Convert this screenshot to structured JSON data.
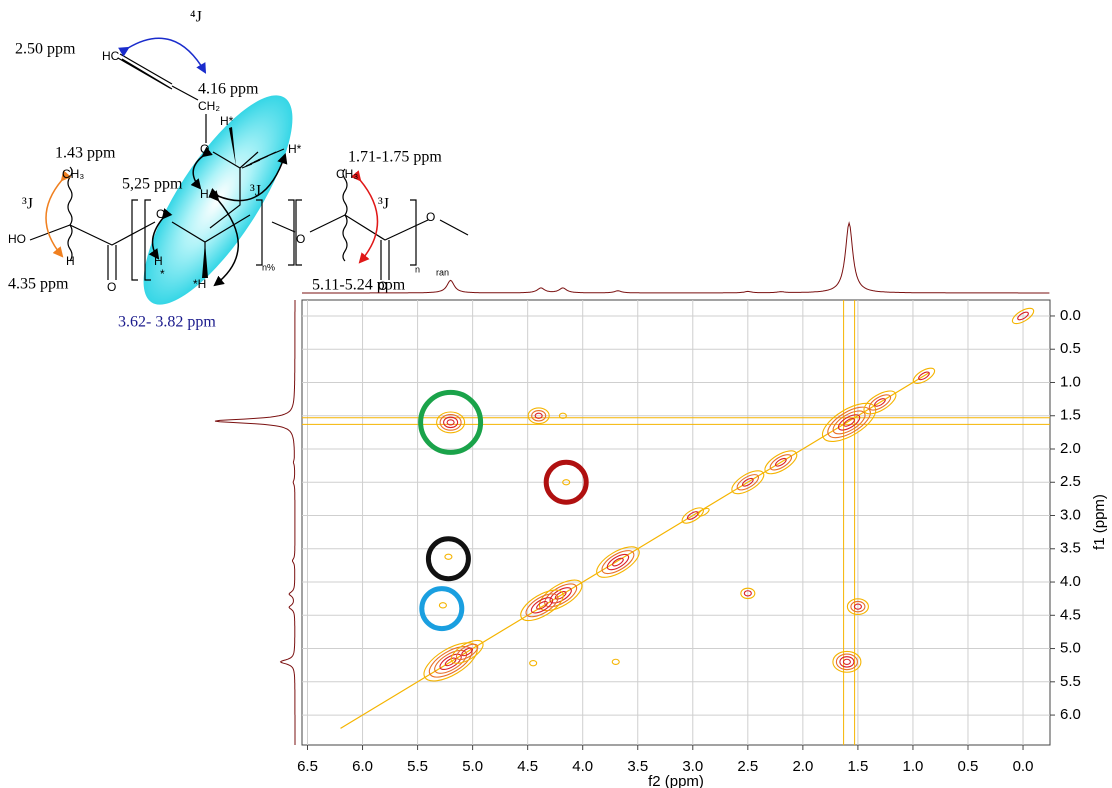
{
  "chart_data": {
    "type": "contour",
    "x_label": "f2 (ppm)",
    "y_label": "f1 (ppm)",
    "xlim": [
      6.55,
      -0.245
    ],
    "ylim": [
      -0.24,
      6.45
    ],
    "xticks": [
      6.5,
      {
        "value": 6,
        "label": "6.0"
      },
      5.5,
      {
        "value": 5,
        "label": "5.0"
      },
      4.5,
      {
        "value": 4,
        "label": "4.0"
      },
      3.5,
      {
        "value": 3,
        "label": "3.0"
      },
      2.5,
      {
        "value": 2,
        "label": "2.0"
      },
      1.5,
      {
        "value": 1,
        "label": "1.0"
      },
      0.5,
      {
        "value": 0,
        "label": "0.0"
      }
    ],
    "yticks": [
      {
        "value": 0,
        "label": "0.0"
      },
      0.5,
      {
        "value": 1,
        "label": "1.0"
      },
      1.5,
      {
        "value": 2,
        "label": "2.0"
      },
      2.5,
      {
        "value": 3,
        "label": "3.0"
      },
      3.5,
      {
        "value": 4,
        "label": "4.0"
      },
      4.5,
      {
        "value": 5,
        "label": "5.0"
      },
      5.5,
      {
        "value": 6,
        "label": "6.0"
      }
    ],
    "grid": true,
    "colors": [
      "#f5b400",
      "#e8702a",
      "#d9202a"
    ],
    "x": [
      5.2,
      4.4,
      4.18,
      1.58,
      1.3,
      0.9,
      2.2,
      2.5,
      3.0,
      2.9,
      3.68,
      4.2,
      4.37,
      5.2,
      5.05,
      4.15,
      2.5,
      1.5,
      1.6,
      5.22,
      5.27,
      0.0,
      3.7,
      4.45
    ],
    "values": [
      1.6,
      1.5,
      1.5,
      1.6,
      1.3,
      0.9,
      2.2,
      2.5,
      3.0,
      2.95,
      3.7,
      4.2,
      4.35,
      5.2,
      5.05,
      2.5,
      4.17,
      4.37,
      5.2,
      3.62,
      4.35,
      0.0,
      5.2,
      5.22
    ],
    "intensity": [
      4,
      3,
      1,
      5,
      3,
      2,
      3,
      3,
      2,
      1,
      4,
      4,
      4,
      5,
      3,
      1,
      2,
      3,
      4,
      1,
      1,
      2,
      1,
      1
    ],
    "diagonal": [
      6.2,
      0.85
    ],
    "streak": 1.58,
    "projection_peaks": [
      1.58,
      5.2,
      4.38,
      4.18,
      3.68,
      2.5,
      2.2
    ],
    "projection_heights": [
      1,
      0.18,
      0.07,
      0.07,
      0.03,
      0.02,
      0.015
    ],
    "highlights": [
      {
        "x": 5.2,
        "y": 1.6,
        "color": "#1aa34a"
      },
      {
        "x": 4.15,
        "y": 2.5,
        "color": "#b01010"
      },
      {
        "x": 5.22,
        "y": 3.65,
        "color": "#111111"
      },
      {
        "x": 5.28,
        "y": 4.4,
        "color": "#1a9fe0"
      }
    ],
    "annotations": [
      "⁴J",
      "2.50 ppm",
      "HC",
      "4.16 ppm",
      "CH₂",
      "O",
      "H*",
      "H*",
      "1.43 ppm",
      "CH₃",
      "5,25 ppm",
      "1.71-1.75 ppm",
      "CH₃",
      "³J",
      "³J",
      "³J",
      "H",
      "HO",
      "O",
      "O",
      "O",
      "H",
      "*",
      "*H",
      "n%",
      "n",
      "ran",
      "H",
      "4.35 ppm",
      "5.11-5.24 ppm",
      "O",
      "O",
      "3.62- 3.82 ppm"
    ]
  }
}
